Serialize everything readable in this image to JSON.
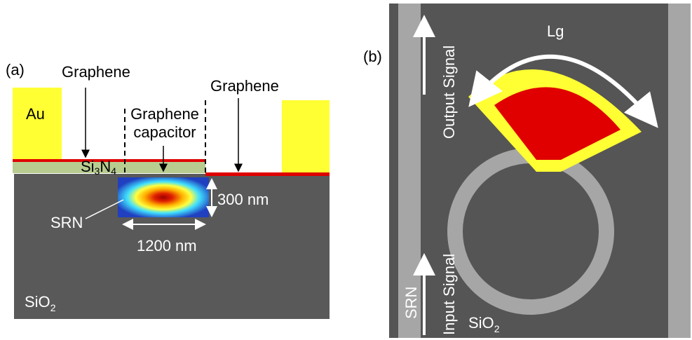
{
  "panel_a": {
    "label": "(a)",
    "graphene_left": "Graphene",
    "au": "Au",
    "capacitor_line1": "Graphene",
    "capacitor_line2": "capacitor",
    "graphene_right": "Graphene",
    "si3n4": [
      "Si",
      "3",
      "N",
      "4"
    ],
    "srn": "SRN",
    "height": "300 nm",
    "width": "1200 nm",
    "sio2": [
      "SiO",
      "2"
    ]
  },
  "panel_b": {
    "label": "(b)",
    "lg": "Lg",
    "output": "Output Signal",
    "input": "Input Signal",
    "srn": "SRN",
    "sio2": [
      "SiO",
      "2"
    ]
  }
}
